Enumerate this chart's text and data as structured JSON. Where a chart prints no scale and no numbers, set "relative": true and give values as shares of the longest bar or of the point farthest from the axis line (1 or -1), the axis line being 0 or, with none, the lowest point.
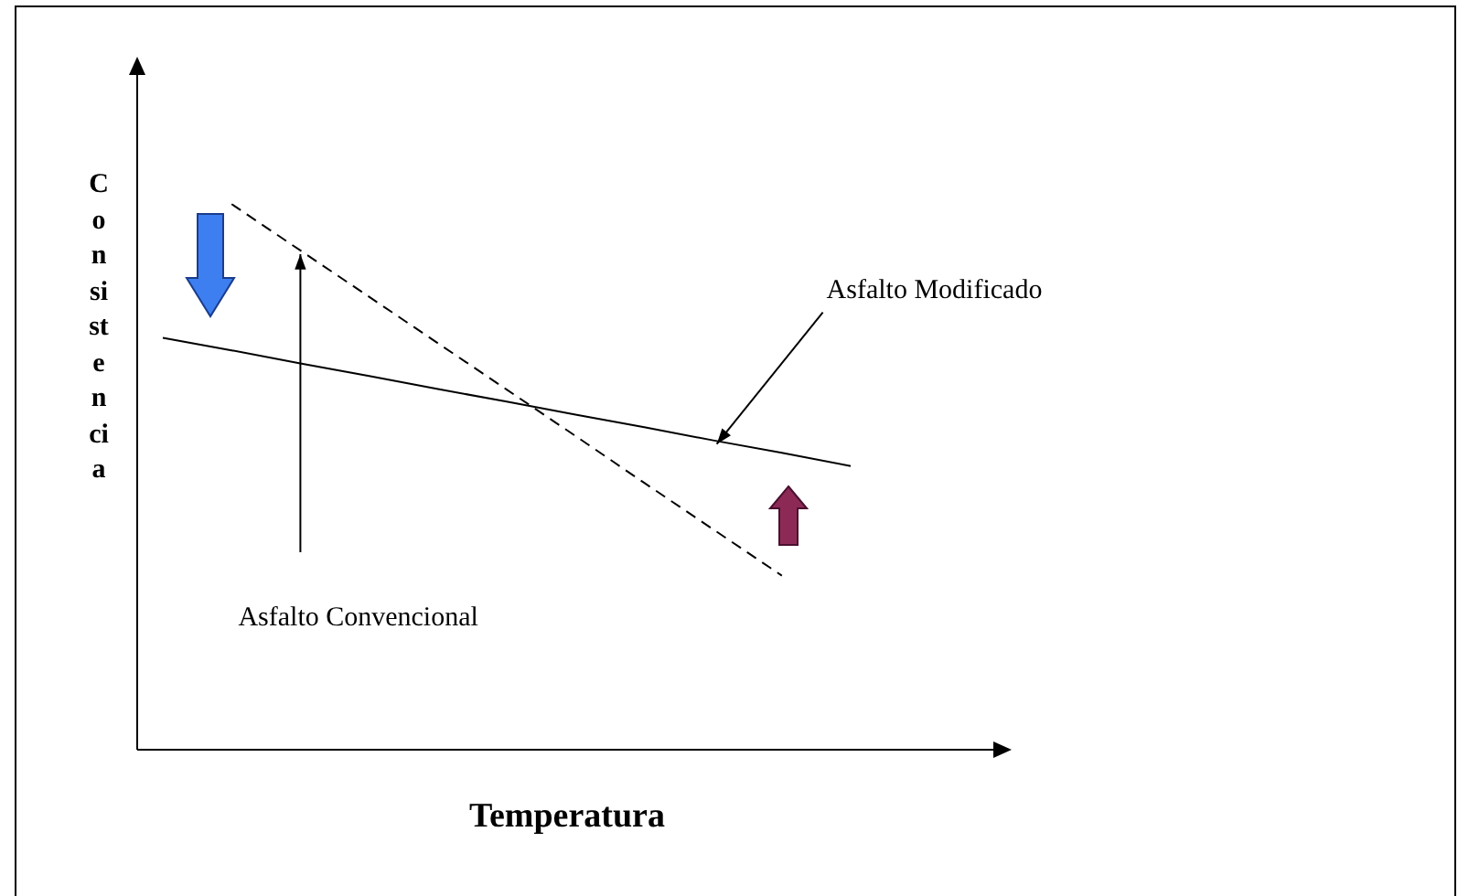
{
  "chart_data": {
    "type": "line",
    "relative": true,
    "xlabel": "Temperatura",
    "ylabel": "Consistencia",
    "marker": "none",
    "categories": [
      null,
      null,
      null,
      null,
      null,
      null,
      null,
      null,
      null,
      null,
      null
    ],
    "series": [
      {
        "color": "#000000",
        "line_style": "solid",
        "values": [
          0.755,
          0.732,
          0.708,
          0.685,
          0.661,
          0.638,
          0.614,
          0.591,
          0.567,
          0.544,
          0.52
        ]
      },
      {
        "color": "#000000",
        "line_style": "dashed",
        "values": [
          null,
          1,
          0.915,
          0.83,
          0.745,
          0.66,
          0.575,
          0.489,
          0.404,
          0.319,
          null
        ]
      }
    ],
    "annotations": [
      "Asfalto Modificado",
      "Asfalto Convencional"
    ]
  }
}
